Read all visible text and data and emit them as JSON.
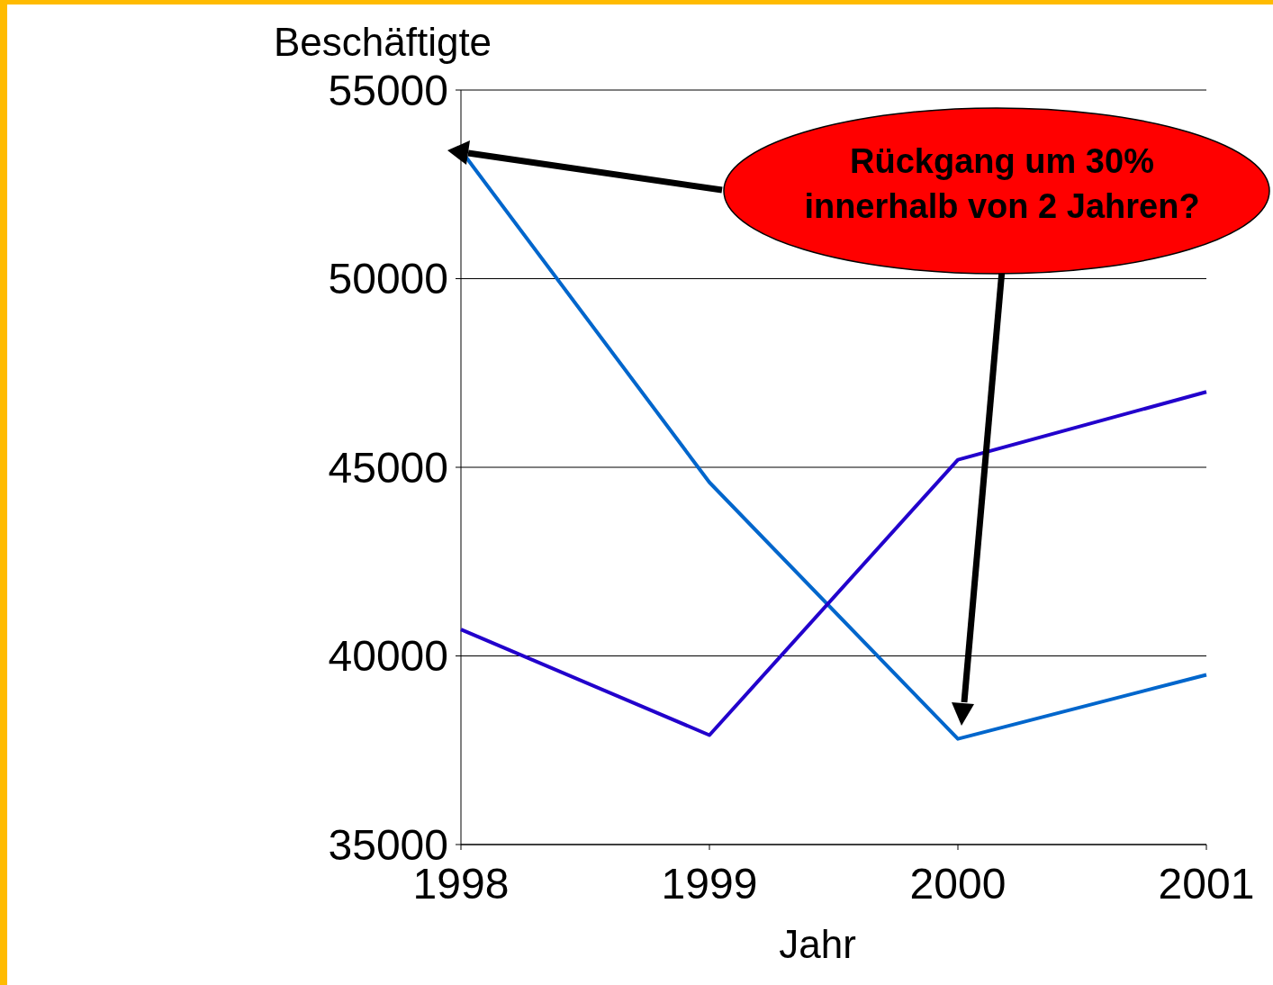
{
  "chart_data": {
    "type": "line",
    "xlabel": "Jahr",
    "ylabel": "Beschäftigte",
    "x": [
      1998,
      1999,
      2000,
      2001
    ],
    "series": [
      {
        "color": "#0066cc",
        "values": [
          53400,
          44600,
          37800,
          39500
        ]
      },
      {
        "color": "#2200cc",
        "values": [
          40700,
          37900,
          45200,
          47000
        ]
      }
    ],
    "xlim": [
      1998,
      2001
    ],
    "xticks": [
      1998,
      1999,
      2000,
      2001
    ],
    "ylim": [
      35000,
      55000
    ],
    "yticks": [
      35000,
      40000,
      45000,
      50000,
      55000
    ],
    "grid": "y",
    "marker": "none",
    "line_style": "solid",
    "annotations": [
      "Rückgang um 30%\ninnerhalb von 2 Jahren?"
    ]
  }
}
